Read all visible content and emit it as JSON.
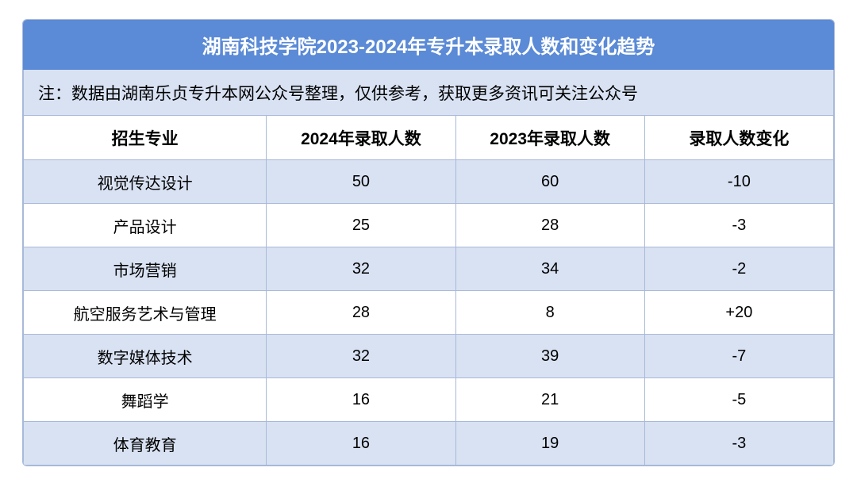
{
  "title": "湖南科技学院2023-2024年专升本录取人数和变化趋势",
  "note": "注：数据由湖南乐贞专升本网公众号整理，仅供参考，获取更多资讯可关注公众号",
  "columns": [
    "招生专业",
    "2024年录取人数",
    "2023年录取人数",
    "录取人数变化"
  ],
  "rows": [
    {
      "major": "视觉传达设计",
      "y2024": "50",
      "y2023": "60",
      "change": "-10"
    },
    {
      "major": "产品设计",
      "y2024": "25",
      "y2023": "28",
      "change": "-3"
    },
    {
      "major": "市场营销",
      "y2024": "32",
      "y2023": "34",
      "change": "-2"
    },
    {
      "major": "航空服务艺术与管理",
      "y2024": "28",
      "y2023": "8",
      "change": "+20"
    },
    {
      "major": "数字媒体技术",
      "y2024": "32",
      "y2023": "39",
      "change": "-7"
    },
    {
      "major": "舞蹈学",
      "y2024": "16",
      "y2023": "21",
      "change": "-5"
    },
    {
      "major": "体育教育",
      "y2024": "16",
      "y2023": "19",
      "change": "-3"
    }
  ],
  "colors": {
    "header_bg": "#5b8ad6",
    "band_bg": "#d9e2f3",
    "border": "#a8b9d8",
    "text": "#000000",
    "title_text": "#ffffff"
  }
}
